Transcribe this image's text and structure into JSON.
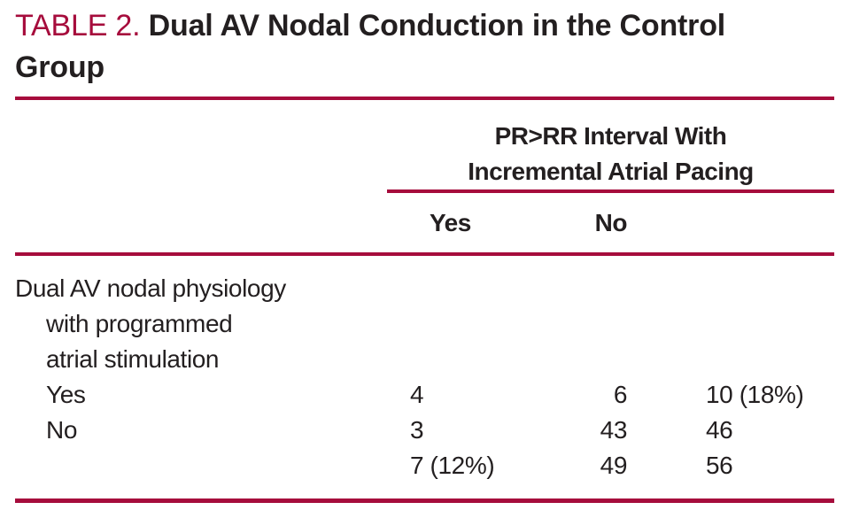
{
  "colors": {
    "accent": "#A60C3C",
    "text": "#231F20"
  },
  "title": {
    "number_label": "TABLE 2.",
    "text": "Dual AV Nodal Conduction in the Control Group"
  },
  "table": {
    "spanner_lines": [
      "PR>RR Interval With",
      "Incremental Atrial Pacing"
    ],
    "columns": {
      "yes": "Yes",
      "no": "No"
    },
    "rows": [
      {
        "label": "Dual AV nodal physiology",
        "yes": "",
        "no": "",
        "total": ""
      },
      {
        "label": "with programmed",
        "yes": "",
        "no": "",
        "total": ""
      },
      {
        "label": "atrial stimulation",
        "yes": "",
        "no": "",
        "total": ""
      },
      {
        "label": "Yes",
        "yes": "4",
        "no": "6",
        "total": "10 (18%)"
      },
      {
        "label": "No",
        "yes": "3",
        "no": "43",
        "total": "46"
      },
      {
        "label": "",
        "yes": "7 (12%)",
        "no": "49",
        "total": "56"
      }
    ]
  }
}
